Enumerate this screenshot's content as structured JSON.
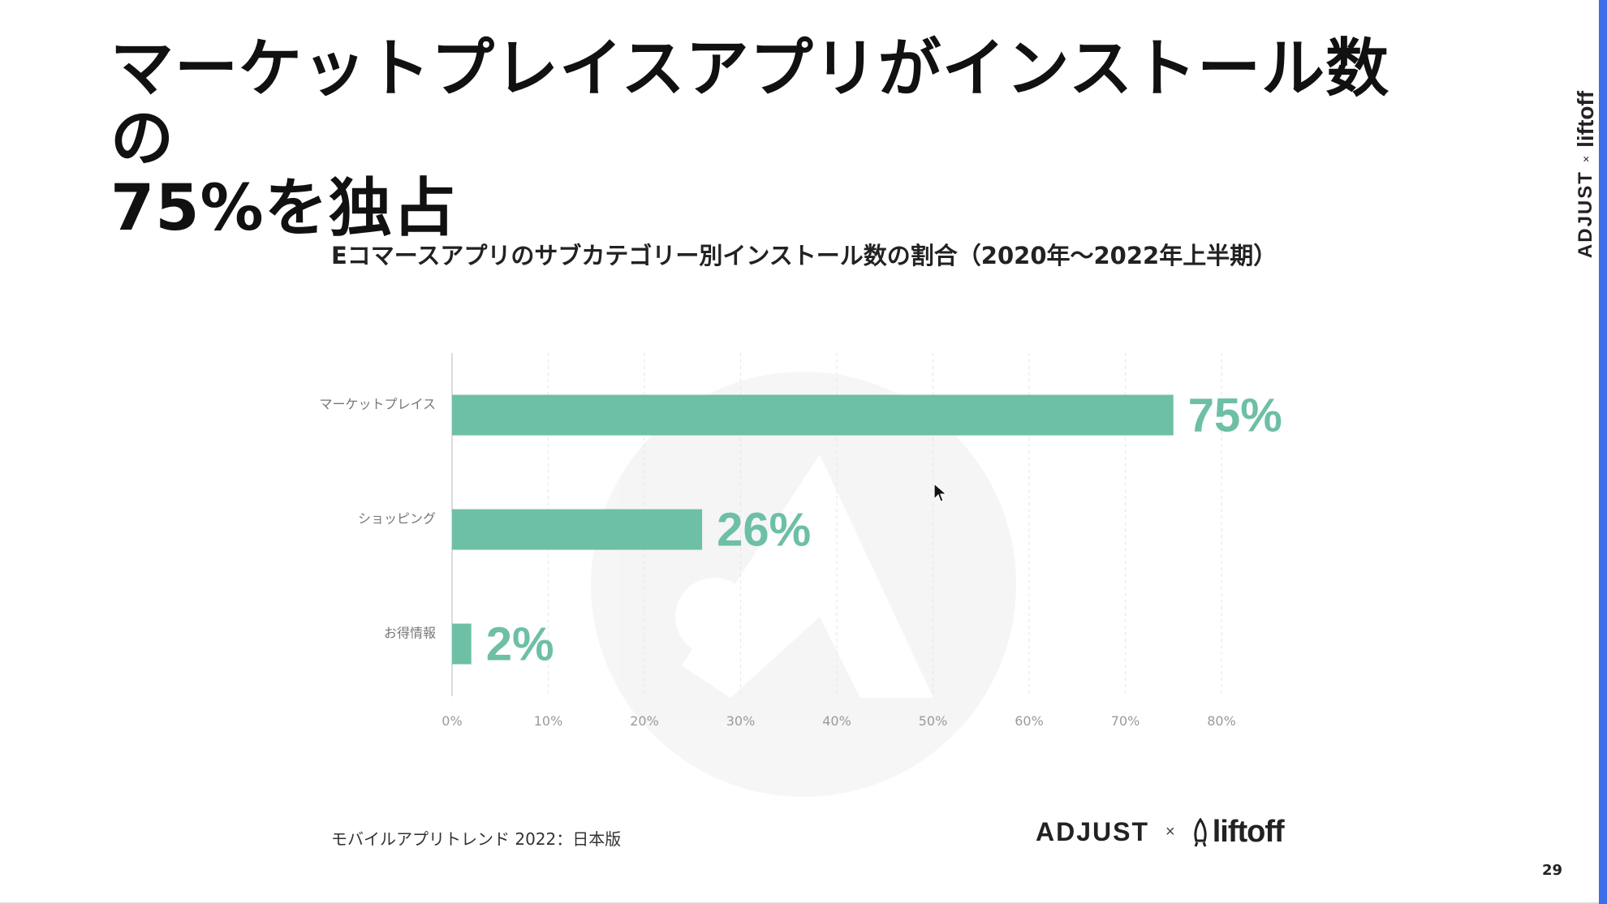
{
  "slide": {
    "title_line1": "マーケットプレイスアプリがインストール数の",
    "title_line2": "75%を独占",
    "source_note": "モバイルアプリトレンド 2022：日本版",
    "page_number": "29",
    "brand": {
      "adjust": "ADJUST",
      "separator": "×",
      "liftoff": "liftoff"
    }
  },
  "chart_data": {
    "type": "bar",
    "orientation": "horizontal",
    "title": "Eコマースアプリのサブカテゴリー別インストール数の割合（2020年～2022年上半期）",
    "categories": [
      "マーケットプレイス",
      "ショッピング",
      "お得情報"
    ],
    "values": [
      75,
      26,
      2
    ],
    "value_labels": [
      "75%",
      "26%",
      "2%"
    ],
    "xlim": [
      0,
      80
    ],
    "xticks": [
      0,
      10,
      20,
      30,
      40,
      50,
      60,
      70,
      80
    ],
    "xtick_labels": [
      "0%",
      "10%",
      "20%",
      "30%",
      "40%",
      "50%",
      "60%",
      "70%",
      "80%"
    ],
    "bar_color": "#6dbfa6",
    "grid": "vertical dashed",
    "legend": "none"
  },
  "colors": {
    "accent_right": "#3d6de8",
    "bar": "#6dbfa6"
  }
}
